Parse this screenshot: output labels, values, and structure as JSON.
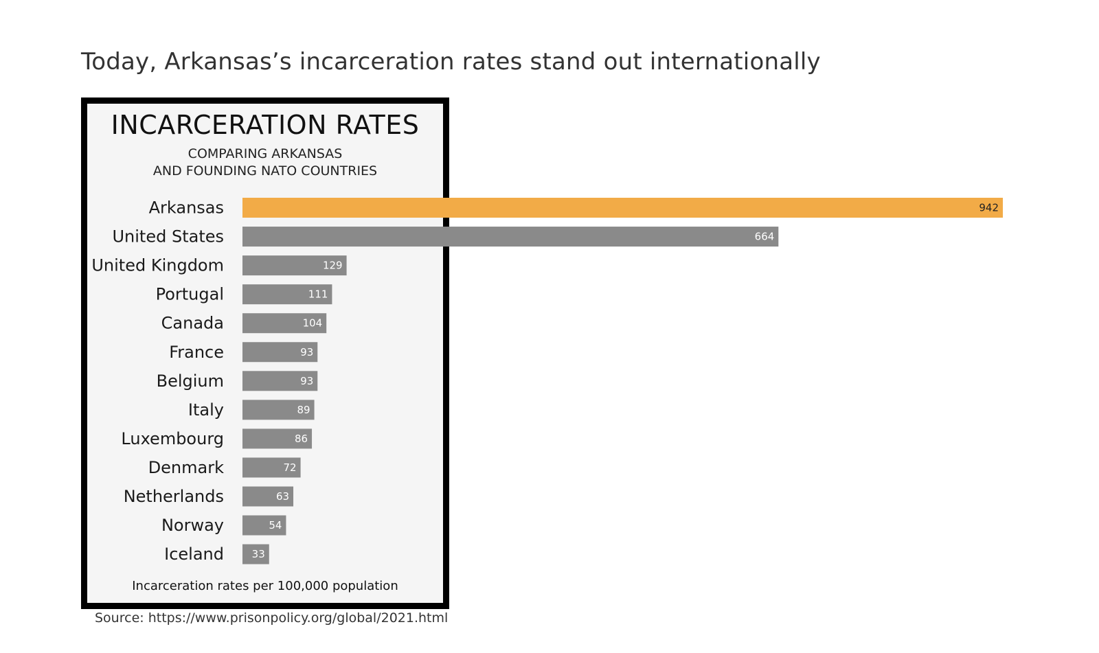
{
  "page": {
    "heading": "Today, Arkansas’s incarceration rates stand out internationally",
    "source": "Source: https://www.prisonpolicy.org/global/2021.html"
  },
  "chart_data": {
    "type": "bar",
    "orientation": "horizontal",
    "title": "INCARCERATION RATES",
    "subtitle_lines": [
      "COMPARING ARKANSAS",
      "AND FOUNDING NATO COUNTRIES"
    ],
    "footer": "Incarceration rates per 100,000 population",
    "categories": [
      "Arkansas",
      "United States",
      "United Kingdom",
      "Portugal",
      "Canada",
      "France",
      "Belgium",
      "Italy",
      "Luxembourg",
      "Denmark",
      "Netherlands",
      "Norway",
      "Iceland"
    ],
    "values": [
      942,
      664,
      129,
      111,
      104,
      93,
      93,
      89,
      86,
      72,
      63,
      54,
      33
    ],
    "highlight": "Arkansas",
    "colors": {
      "highlight": "#f2ab47",
      "bar": "#8a8a8a",
      "highlight_label": "#222222",
      "bar_label": "#ffffff"
    },
    "xlim": [
      0,
      942
    ],
    "grid": false,
    "legend": "none"
  }
}
